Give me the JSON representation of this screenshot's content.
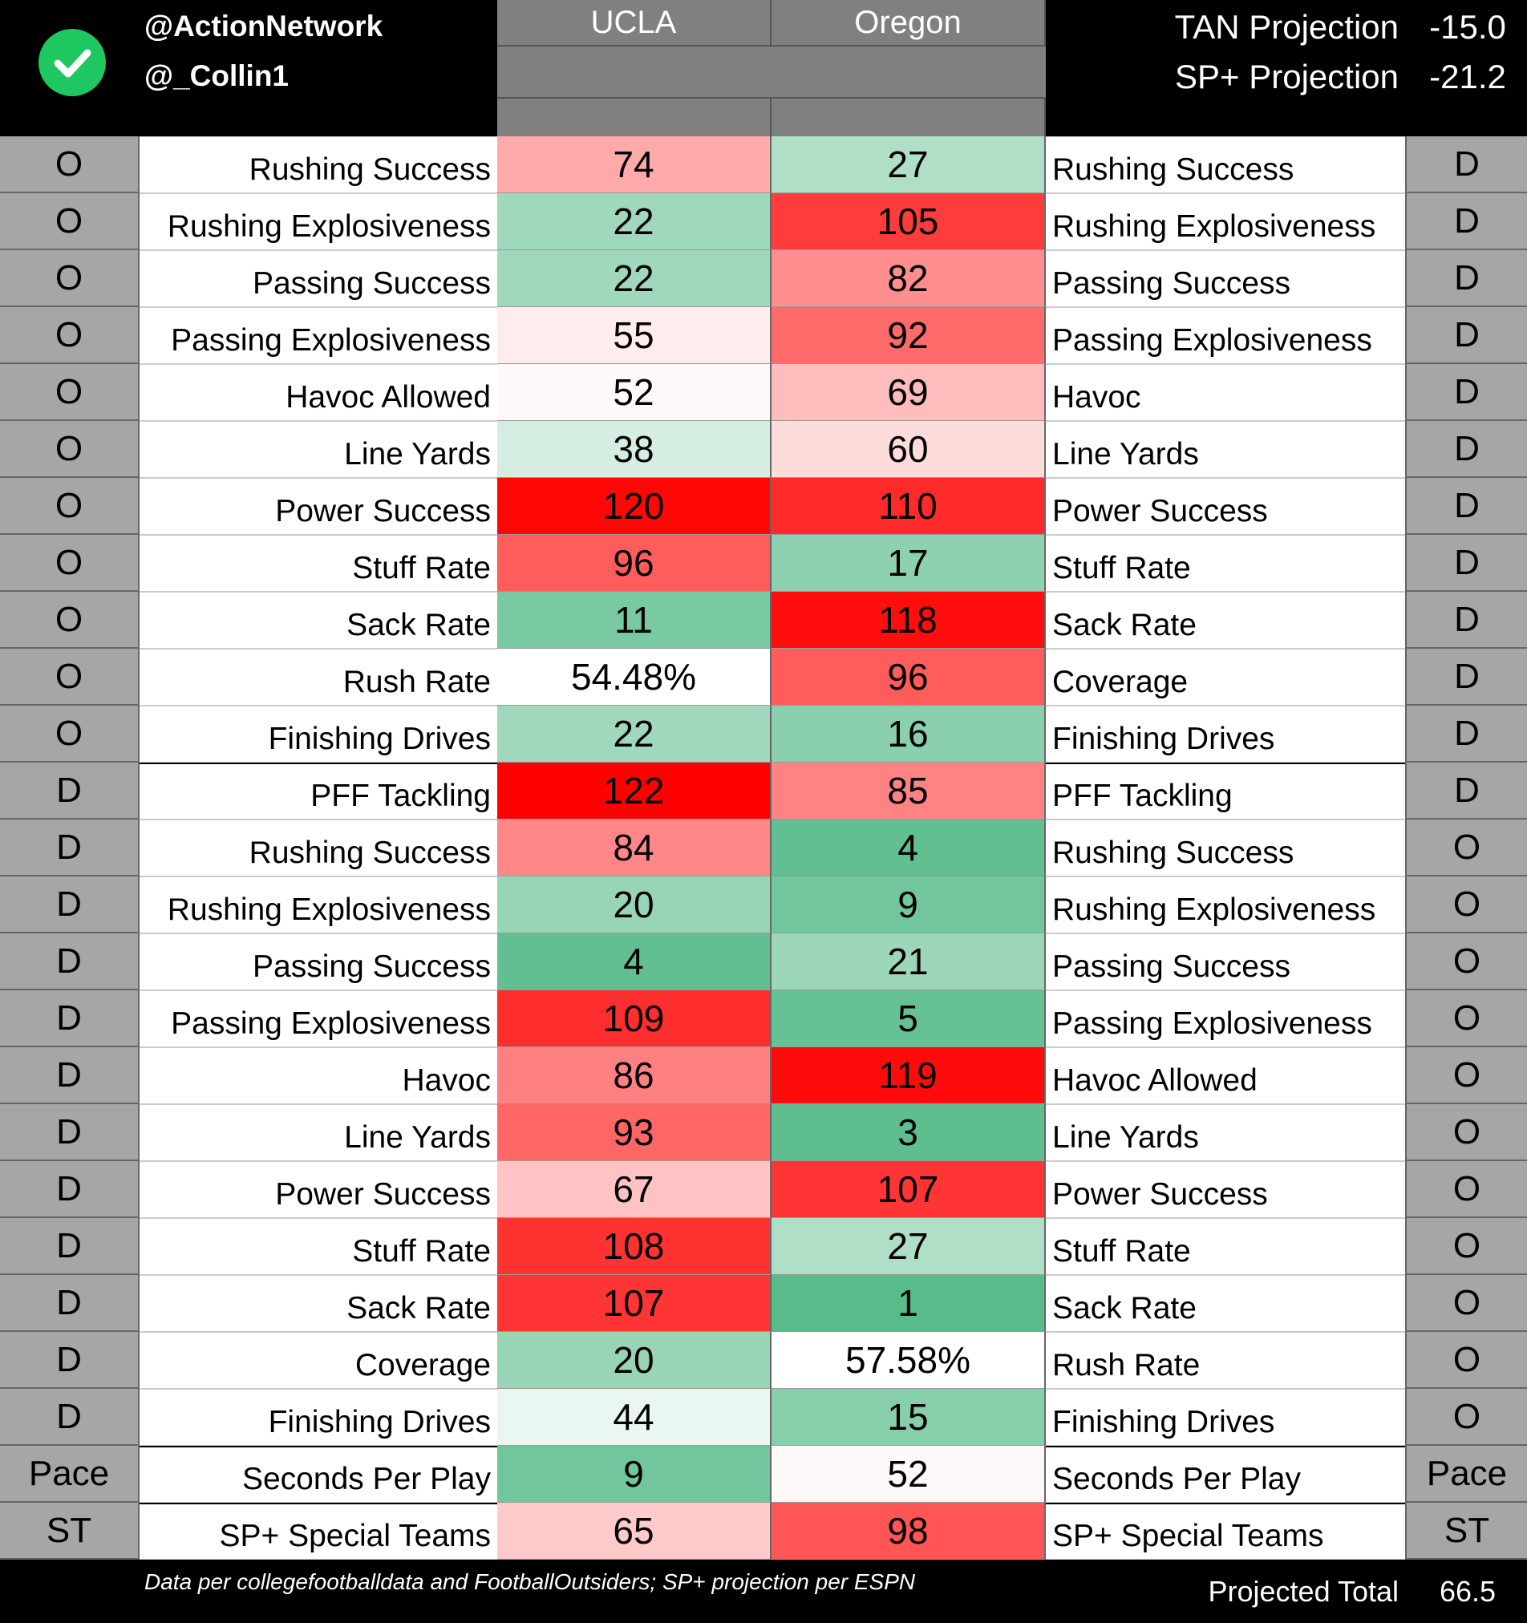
{
  "header": {
    "handles": [
      "@ActionNetwork",
      "@_Collin1"
    ],
    "teams": [
      "UCLA",
      "Oregon"
    ],
    "projections": [
      {
        "label": "TAN Projection",
        "value": "-15.0"
      },
      {
        "label": "SP+ Projection",
        "value": "-21.2"
      }
    ]
  },
  "rows": [
    {
      "left": "O",
      "left_metric": "Rushing Success",
      "ucla": 74,
      "oregon": 27,
      "right_metric": "Rushing Success",
      "right": "D"
    },
    {
      "left": "O",
      "left_metric": "Rushing Explosiveness",
      "ucla": 22,
      "oregon": 105,
      "right_metric": "Rushing Explosiveness",
      "right": "D"
    },
    {
      "left": "O",
      "left_metric": "Passing Success",
      "ucla": 22,
      "oregon": 82,
      "right_metric": "Passing Success",
      "right": "D"
    },
    {
      "left": "O",
      "left_metric": "Passing Explosiveness",
      "ucla": 55,
      "oregon": 92,
      "right_metric": "Passing Explosiveness",
      "right": "D"
    },
    {
      "left": "O",
      "left_metric": "Havoc Allowed",
      "ucla": 52,
      "oregon": 69,
      "right_metric": "Havoc",
      "right": "D"
    },
    {
      "left": "O",
      "left_metric": "Line Yards",
      "ucla": 38,
      "oregon": 60,
      "right_metric": "Line Yards",
      "right": "D"
    },
    {
      "left": "O",
      "left_metric": "Power Success",
      "ucla": 120,
      "oregon": 110,
      "right_metric": "Power Success",
      "right": "D"
    },
    {
      "left": "O",
      "left_metric": "Stuff Rate",
      "ucla": 96,
      "oregon": 17,
      "right_metric": "Stuff Rate",
      "right": "D"
    },
    {
      "left": "O",
      "left_metric": "Sack Rate",
      "ucla": 11,
      "oregon": 118,
      "right_metric": "Sack Rate",
      "right": "D"
    },
    {
      "left": "O",
      "left_metric": "Rush Rate",
      "ucla": "54.48%",
      "oregon": 96,
      "right_metric": "Coverage",
      "right": "D"
    },
    {
      "left": "O",
      "left_metric": "Finishing Drives",
      "ucla": 22,
      "oregon": 16,
      "right_metric": "Finishing Drives",
      "right": "D"
    },
    {
      "left": "D",
      "left_metric": "PFF Tackling",
      "ucla": 122,
      "oregon": 85,
      "right_metric": "PFF Tackling",
      "right": "D"
    },
    {
      "left": "D",
      "left_metric": "Rushing Success",
      "ucla": 84,
      "oregon": 4,
      "right_metric": "Rushing Success",
      "right": "O"
    },
    {
      "left": "D",
      "left_metric": "Rushing Explosiveness",
      "ucla": 20,
      "oregon": 9,
      "right_metric": "Rushing Explosiveness",
      "right": "O"
    },
    {
      "left": "D",
      "left_metric": "Passing Success",
      "ucla": 4,
      "oregon": 21,
      "right_metric": "Passing Success",
      "right": "O"
    },
    {
      "left": "D",
      "left_metric": "Passing Explosiveness",
      "ucla": 109,
      "oregon": 5,
      "right_metric": "Passing Explosiveness",
      "right": "O"
    },
    {
      "left": "D",
      "left_metric": "Havoc",
      "ucla": 86,
      "oregon": 119,
      "right_metric": "Havoc Allowed",
      "right": "O"
    },
    {
      "left": "D",
      "left_metric": "Line Yards",
      "ucla": 93,
      "oregon": 3,
      "right_metric": "Line Yards",
      "right": "O"
    },
    {
      "left": "D",
      "left_metric": "Power Success",
      "ucla": 67,
      "oregon": 107,
      "right_metric": "Power Success",
      "right": "O"
    },
    {
      "left": "D",
      "left_metric": "Stuff Rate",
      "ucla": 108,
      "oregon": 27,
      "right_metric": "Stuff Rate",
      "right": "O"
    },
    {
      "left": "D",
      "left_metric": "Sack Rate",
      "ucla": 107,
      "oregon": 1,
      "right_metric": "Sack Rate",
      "right": "O"
    },
    {
      "left": "D",
      "left_metric": "Coverage",
      "ucla": 20,
      "oregon": "57.58%",
      "right_metric": "Rush Rate",
      "right": "O"
    },
    {
      "left": "D",
      "left_metric": "Finishing Drives",
      "ucla": 44,
      "oregon": 15,
      "right_metric": "Finishing Drives",
      "right": "O"
    },
    {
      "left": "Pace",
      "left_metric": "Seconds Per Play",
      "ucla": 9,
      "oregon": 52,
      "right_metric": "Seconds Per Play",
      "right": "Pace"
    },
    {
      "left": "ST",
      "left_metric": "SP+ Special Teams",
      "ucla": 65,
      "oregon": 98,
      "right_metric": "SP+ Special Teams",
      "right": "ST"
    }
  ],
  "footer": {
    "note": "Data per collegefootballdata and FootballOutsiders; SP+ projection per ESPN",
    "total_label": "Projected Total",
    "total_value": "66.5"
  }
}
